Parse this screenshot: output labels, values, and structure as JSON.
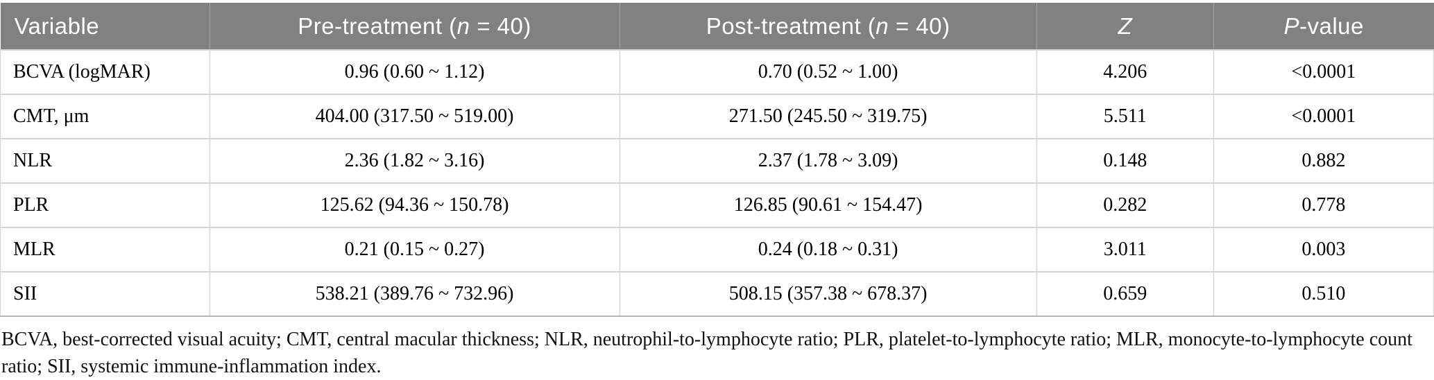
{
  "colors": {
    "header_bg": "#818181",
    "header_text": "#ffffff",
    "header_divider": "#a6a6a6",
    "row_border": "#c9c9c9",
    "body_text": "#000000"
  },
  "header": {
    "variable": "Variable",
    "pre": {
      "prefix": "Pre-treatment (",
      "n": "n",
      "suffix": " = 40)"
    },
    "post": {
      "prefix": "Post-treatment (",
      "n": "n",
      "suffix": " = 40)"
    },
    "z": "Z",
    "p": {
      "italic": "P",
      "rest": "-value"
    }
  },
  "rows": [
    {
      "variable": "BCVA (logMAR)",
      "pre": "0.96 (0.60 ~ 1.12)",
      "post": "0.70 (0.52 ~ 1.00)",
      "z": "4.206",
      "p": "<0.0001"
    },
    {
      "variable": "CMT, μm",
      "pre": "404.00 (317.50 ~ 519.00)",
      "post": "271.50 (245.50 ~ 319.75)",
      "z": "5.511",
      "p": "<0.0001"
    },
    {
      "variable": "NLR",
      "pre": "2.36 (1.82 ~ 3.16)",
      "post": "2.37 (1.78 ~ 3.09)",
      "z": "0.148",
      "p": "0.882"
    },
    {
      "variable": "PLR",
      "pre": "125.62 (94.36 ~ 150.78)",
      "post": "126.85 (90.61 ~ 154.47)",
      "z": "0.282",
      "p": "0.778"
    },
    {
      "variable": "MLR",
      "pre": "0.21 (0.15 ~ 0.27)",
      "post": "0.24 (0.18 ~ 0.31)",
      "z": "3.011",
      "p": "0.003"
    },
    {
      "variable": "SII",
      "pre": "538.21 (389.76 ~ 732.96)",
      "post": "508.15 (357.38 ~ 678.37)",
      "z": "0.659",
      "p": "0.510"
    }
  ],
  "footnote": "BCVA, best-corrected visual acuity; CMT, central macular thickness; NLR, neutrophil-to-lymphocyte ratio; PLR, platelet-to-lymphocyte ratio; MLR, monocyte-to-lymphocyte count ratio; SII, systemic immune-inflammation index."
}
